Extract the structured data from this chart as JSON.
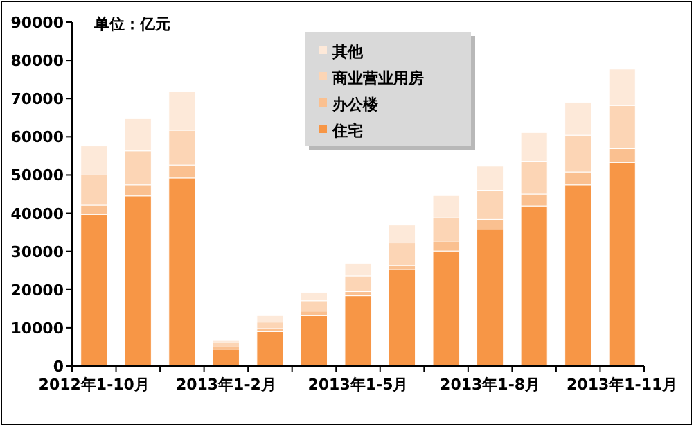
{
  "chart_data": {
    "type": "bar",
    "stacked": true,
    "annotations": [
      "单位：亿元"
    ],
    "categories": [
      "2012年1-10月",
      null,
      null,
      "2013年1-2月",
      null,
      null,
      "2013年1-5月",
      null,
      null,
      "2013年1-8月",
      null,
      null,
      "2013年1-11月"
    ],
    "series": [
      {
        "name": "住宅",
        "color": "#f79646",
        "values": [
          39700,
          44500,
          49200,
          4400,
          9000,
          13200,
          18400,
          25200,
          30100,
          35800,
          41900,
          47400,
          53300
        ]
      },
      {
        "name": "办公楼",
        "color": "#fac090",
        "values": [
          2400,
          2900,
          3400,
          600,
          800,
          1200,
          1100,
          1100,
          2600,
          2600,
          3100,
          3400,
          3600
        ]
      },
      {
        "name": "商业营业用房",
        "color": "#fcd5b5",
        "values": [
          7900,
          8900,
          9100,
          1200,
          1700,
          2700,
          4100,
          5900,
          6100,
          7600,
          8600,
          9600,
          11300
        ]
      },
      {
        "name": "其他",
        "color": "#fde9d9",
        "values": [
          7600,
          8600,
          10100,
          500,
          1700,
          2200,
          3200,
          4700,
          5800,
          6300,
          7500,
          8600,
          9500
        ]
      }
    ],
    "ylim": [
      0,
      90000
    ],
    "yticks": [
      0,
      10000,
      20000,
      30000,
      40000,
      50000,
      60000,
      70000,
      80000,
      90000
    ],
    "legend": "top",
    "grid": false
  }
}
